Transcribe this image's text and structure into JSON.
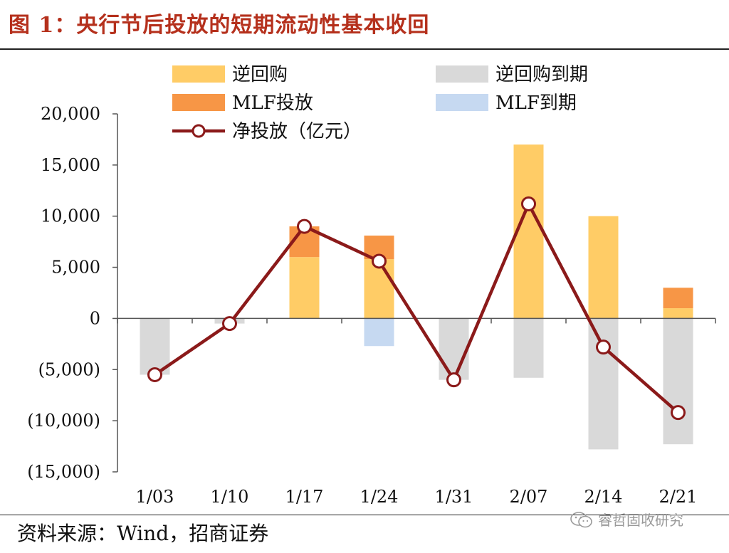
{
  "figure": {
    "title": "图 1：央行节后投放的短期流动性基本收回",
    "source": "资料来源：Wind，招商证券",
    "watermark": "睿哲固收研究"
  },
  "chart_data": {
    "type": "bar",
    "categories": [
      "1/03",
      "1/10",
      "1/17",
      "1/24",
      "1/31",
      "2/07",
      "2/14",
      "2/21"
    ],
    "ylim": [
      -15000,
      20000
    ],
    "yticks": [
      20000,
      15000,
      10000,
      5000,
      0,
      -5000,
      -10000,
      -15000
    ],
    "ytick_labels": [
      "20,000",
      "15,000",
      "10,000",
      "5,000",
      "0",
      "(5,000)",
      "(10,000)",
      "(15,000)"
    ],
    "series": [
      {
        "name": "逆回购",
        "kind": "bar",
        "color": "#ffcc66",
        "values": [
          0,
          0,
          6000,
          5800,
          0,
          17000,
          10000,
          1000
        ]
      },
      {
        "name": "MLF投放",
        "kind": "bar",
        "color": "#f79646",
        "values": [
          0,
          0,
          3000,
          2300,
          0,
          0,
          0,
          2000
        ]
      },
      {
        "name": "逆回购到期",
        "kind": "bar",
        "color": "#d9d9d9",
        "values": [
          -5500,
          -500,
          0,
          0,
          -6000,
          -5800,
          -12800,
          -12300
        ]
      },
      {
        "name": "MLF到期",
        "kind": "bar",
        "color": "#c6d9f1",
        "values": [
          0,
          0,
          0,
          -2700,
          0,
          0,
          0,
          0
        ]
      },
      {
        "name": "净投放（亿元）",
        "kind": "line",
        "color": "#8b1a1a",
        "values": [
          -5500,
          -500,
          9000,
          5600,
          -6000,
          11200,
          -2800,
          -9200
        ]
      }
    ],
    "legend": {
      "position": "top",
      "items": [
        "逆回购",
        "逆回购到期",
        "MLF投放",
        "MLF到期",
        "净投放（亿元）"
      ]
    }
  }
}
